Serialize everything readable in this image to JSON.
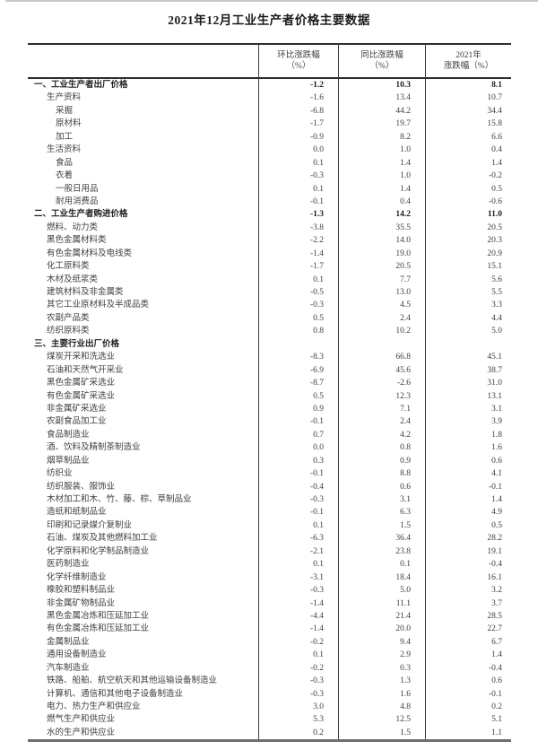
{
  "page": {
    "title": "2021年12月工业生产者价格主要数据"
  },
  "colors": {
    "text": "#3f3f3f",
    "bold_text": "#1f1f1f",
    "table_border_dark": "#2e2e2e",
    "table_border_bottom": "#6e6e6e",
    "column_separator": "#3f3f3f",
    "top_edge_line": "#c9c9c9",
    "background": "#ffffff"
  },
  "table": {
    "column_headers": [
      {
        "line1": "环比涨跌幅",
        "line2": "（%）"
      },
      {
        "line1": "同比涨跌幅",
        "line2": "（%）"
      },
      {
        "line1": "2021年",
        "line2": "涨跌幅（%）"
      }
    ],
    "rows": [
      {
        "label": "一、工业生产者出厂价格",
        "indent": 0,
        "bold": true,
        "values": [
          "-1.2",
          "10.3",
          "8.1"
        ]
      },
      {
        "label": "生产资料",
        "indent": 1,
        "bold": false,
        "values": [
          "-1.6",
          "13.4",
          "10.7"
        ]
      },
      {
        "label": "采掘",
        "indent": 2,
        "bold": false,
        "values": [
          "-6.8",
          "44.2",
          "34.4"
        ]
      },
      {
        "label": "原材料",
        "indent": 2,
        "bold": false,
        "values": [
          "-1.7",
          "19.7",
          "15.8"
        ]
      },
      {
        "label": "加工",
        "indent": 2,
        "bold": false,
        "values": [
          "-0.9",
          "8.2",
          "6.6"
        ]
      },
      {
        "label": "生活资料",
        "indent": 1,
        "bold": false,
        "values": [
          "0.0",
          "1.0",
          "0.4"
        ]
      },
      {
        "label": "食品",
        "indent": 2,
        "bold": false,
        "values": [
          "0.1",
          "1.4",
          "1.4"
        ]
      },
      {
        "label": "衣着",
        "indent": 2,
        "bold": false,
        "values": [
          "-0.3",
          "1.0",
          "-0.2"
        ]
      },
      {
        "label": "一般日用品",
        "indent": 2,
        "bold": false,
        "values": [
          "0.1",
          "1.4",
          "0.5"
        ]
      },
      {
        "label": "耐用消费品",
        "indent": 2,
        "bold": false,
        "values": [
          "-0.1",
          "0.4",
          "-0.6"
        ]
      },
      {
        "label": "二、工业生产者购进价格",
        "indent": 0,
        "bold": true,
        "values": [
          "-1.3",
          "14.2",
          "11.0"
        ]
      },
      {
        "label": "燃料、动力类",
        "indent": 1,
        "bold": false,
        "values": [
          "-3.8",
          "35.5",
          "20.5"
        ]
      },
      {
        "label": "黑色金属材料类",
        "indent": 1,
        "bold": false,
        "values": [
          "-2.2",
          "14.0",
          "20.3"
        ]
      },
      {
        "label": "有色金属材料及电线类",
        "indent": 1,
        "bold": false,
        "values": [
          "-1.4",
          "19.0",
          "20.9"
        ]
      },
      {
        "label": "化工原料类",
        "indent": 1,
        "bold": false,
        "values": [
          "-1.7",
          "20.5",
          "15.1"
        ]
      },
      {
        "label": "木材及纸浆类",
        "indent": 1,
        "bold": false,
        "values": [
          "0.1",
          "7.7",
          "5.6"
        ]
      },
      {
        "label": "建筑材料及非金属类",
        "indent": 1,
        "bold": false,
        "values": [
          "-0.5",
          "13.0",
          "5.5"
        ]
      },
      {
        "label": "其它工业原材料及半成品类",
        "indent": 1,
        "bold": false,
        "values": [
          "-0.3",
          "4.5",
          "3.3"
        ]
      },
      {
        "label": "农副产品类",
        "indent": 1,
        "bold": false,
        "values": [
          "0.5",
          "2.4",
          "4.4"
        ]
      },
      {
        "label": "纺织原料类",
        "indent": 1,
        "bold": false,
        "values": [
          "0.8",
          "10.2",
          "5.0"
        ]
      },
      {
        "label": "三、主要行业出厂价格",
        "indent": 0,
        "bold": true,
        "values": [
          "",
          "",
          ""
        ]
      },
      {
        "label": "煤炭开采和洗选业",
        "indent": 1,
        "bold": false,
        "values": [
          "-8.3",
          "66.8",
          "45.1"
        ]
      },
      {
        "label": "石油和天然气开采业",
        "indent": 1,
        "bold": false,
        "values": [
          "-6.9",
          "45.6",
          "38.7"
        ]
      },
      {
        "label": "黑色金属矿采选业",
        "indent": 1,
        "bold": false,
        "values": [
          "-8.7",
          "-2.6",
          "31.0"
        ]
      },
      {
        "label": "有色金属矿采选业",
        "indent": 1,
        "bold": false,
        "values": [
          "0.5",
          "12.3",
          "13.1"
        ]
      },
      {
        "label": "非金属矿采选业",
        "indent": 1,
        "bold": false,
        "values": [
          "0.9",
          "7.1",
          "3.1"
        ]
      },
      {
        "label": "农副食品加工业",
        "indent": 1,
        "bold": false,
        "values": [
          "-0.1",
          "2.4",
          "3.9"
        ]
      },
      {
        "label": "食品制造业",
        "indent": 1,
        "bold": false,
        "values": [
          "0.7",
          "4.2",
          "1.8"
        ]
      },
      {
        "label": "酒、饮料及精制茶制造业",
        "indent": 1,
        "bold": false,
        "values": [
          "0.0",
          "0.8",
          "1.6"
        ]
      },
      {
        "label": "烟草制品业",
        "indent": 1,
        "bold": false,
        "values": [
          "0.3",
          "0.9",
          "0.6"
        ]
      },
      {
        "label": "纺织业",
        "indent": 1,
        "bold": false,
        "values": [
          "-0.1",
          "8.8",
          "4.1"
        ]
      },
      {
        "label": "纺织服装、服饰业",
        "indent": 1,
        "bold": false,
        "values": [
          "-0.4",
          "0.6",
          "-0.1"
        ]
      },
      {
        "label": "木材加工和木、竹、藤、棕、草制品业",
        "indent": 1,
        "bold": false,
        "values": [
          "-0.3",
          "3.1",
          "1.4"
        ]
      },
      {
        "label": "造纸和纸制品业",
        "indent": 1,
        "bold": false,
        "values": [
          "-0.1",
          "6.3",
          "4.9"
        ]
      },
      {
        "label": "印刷和记录媒介复制业",
        "indent": 1,
        "bold": false,
        "values": [
          "0.1",
          "1.5",
          "0.5"
        ]
      },
      {
        "label": "石油、煤炭及其他燃料加工业",
        "indent": 1,
        "bold": false,
        "values": [
          "-6.3",
          "36.4",
          "28.2"
        ]
      },
      {
        "label": "化学原料和化学制品制造业",
        "indent": 1,
        "bold": false,
        "values": [
          "-2.1",
          "23.8",
          "19.1"
        ]
      },
      {
        "label": "医药制造业",
        "indent": 1,
        "bold": false,
        "values": [
          "0.1",
          "0.1",
          "-0.4"
        ]
      },
      {
        "label": "化学纤维制造业",
        "indent": 1,
        "bold": false,
        "values": [
          "-3.1",
          "18.4",
          "16.1"
        ]
      },
      {
        "label": "橡胶和塑料制品业",
        "indent": 1,
        "bold": false,
        "values": [
          "-0.3",
          "5.0",
          "3.2"
        ]
      },
      {
        "label": "非金属矿物制品业",
        "indent": 1,
        "bold": false,
        "values": [
          "-1.4",
          "11.1",
          "3.7"
        ]
      },
      {
        "label": "黑色金属冶炼和压延加工业",
        "indent": 1,
        "bold": false,
        "values": [
          "-4.4",
          "21.4",
          "28.5"
        ]
      },
      {
        "label": "有色金属冶炼和压延加工业",
        "indent": 1,
        "bold": false,
        "values": [
          "-1.4",
          "20.0",
          "22.7"
        ]
      },
      {
        "label": "金属制品业",
        "indent": 1,
        "bold": false,
        "values": [
          "-0.2",
          "9.4",
          "6.7"
        ]
      },
      {
        "label": "通用设备制造业",
        "indent": 1,
        "bold": false,
        "values": [
          "0.1",
          "2.9",
          "1.4"
        ]
      },
      {
        "label": "汽车制造业",
        "indent": 1,
        "bold": false,
        "values": [
          "-0.2",
          "0.3",
          "-0.4"
        ]
      },
      {
        "label": "铁路、船舶、航空航天和其他运输设备制造业",
        "indent": 1,
        "bold": false,
        "values": [
          "-0.3",
          "1.3",
          "0.6"
        ]
      },
      {
        "label": "计算机、通信和其他电子设备制造业",
        "indent": 1,
        "bold": false,
        "values": [
          "-0.3",
          "1.6",
          "-0.1"
        ]
      },
      {
        "label": "电力、热力生产和供应业",
        "indent": 1,
        "bold": false,
        "values": [
          "3.0",
          "4.8",
          "0.2"
        ]
      },
      {
        "label": "燃气生产和供应业",
        "indent": 1,
        "bold": false,
        "values": [
          "5.3",
          "12.5",
          "5.1"
        ]
      },
      {
        "label": "水的生产和供应业",
        "indent": 1,
        "bold": false,
        "values": [
          "0.2",
          "1.5",
          "1.1"
        ]
      }
    ]
  }
}
